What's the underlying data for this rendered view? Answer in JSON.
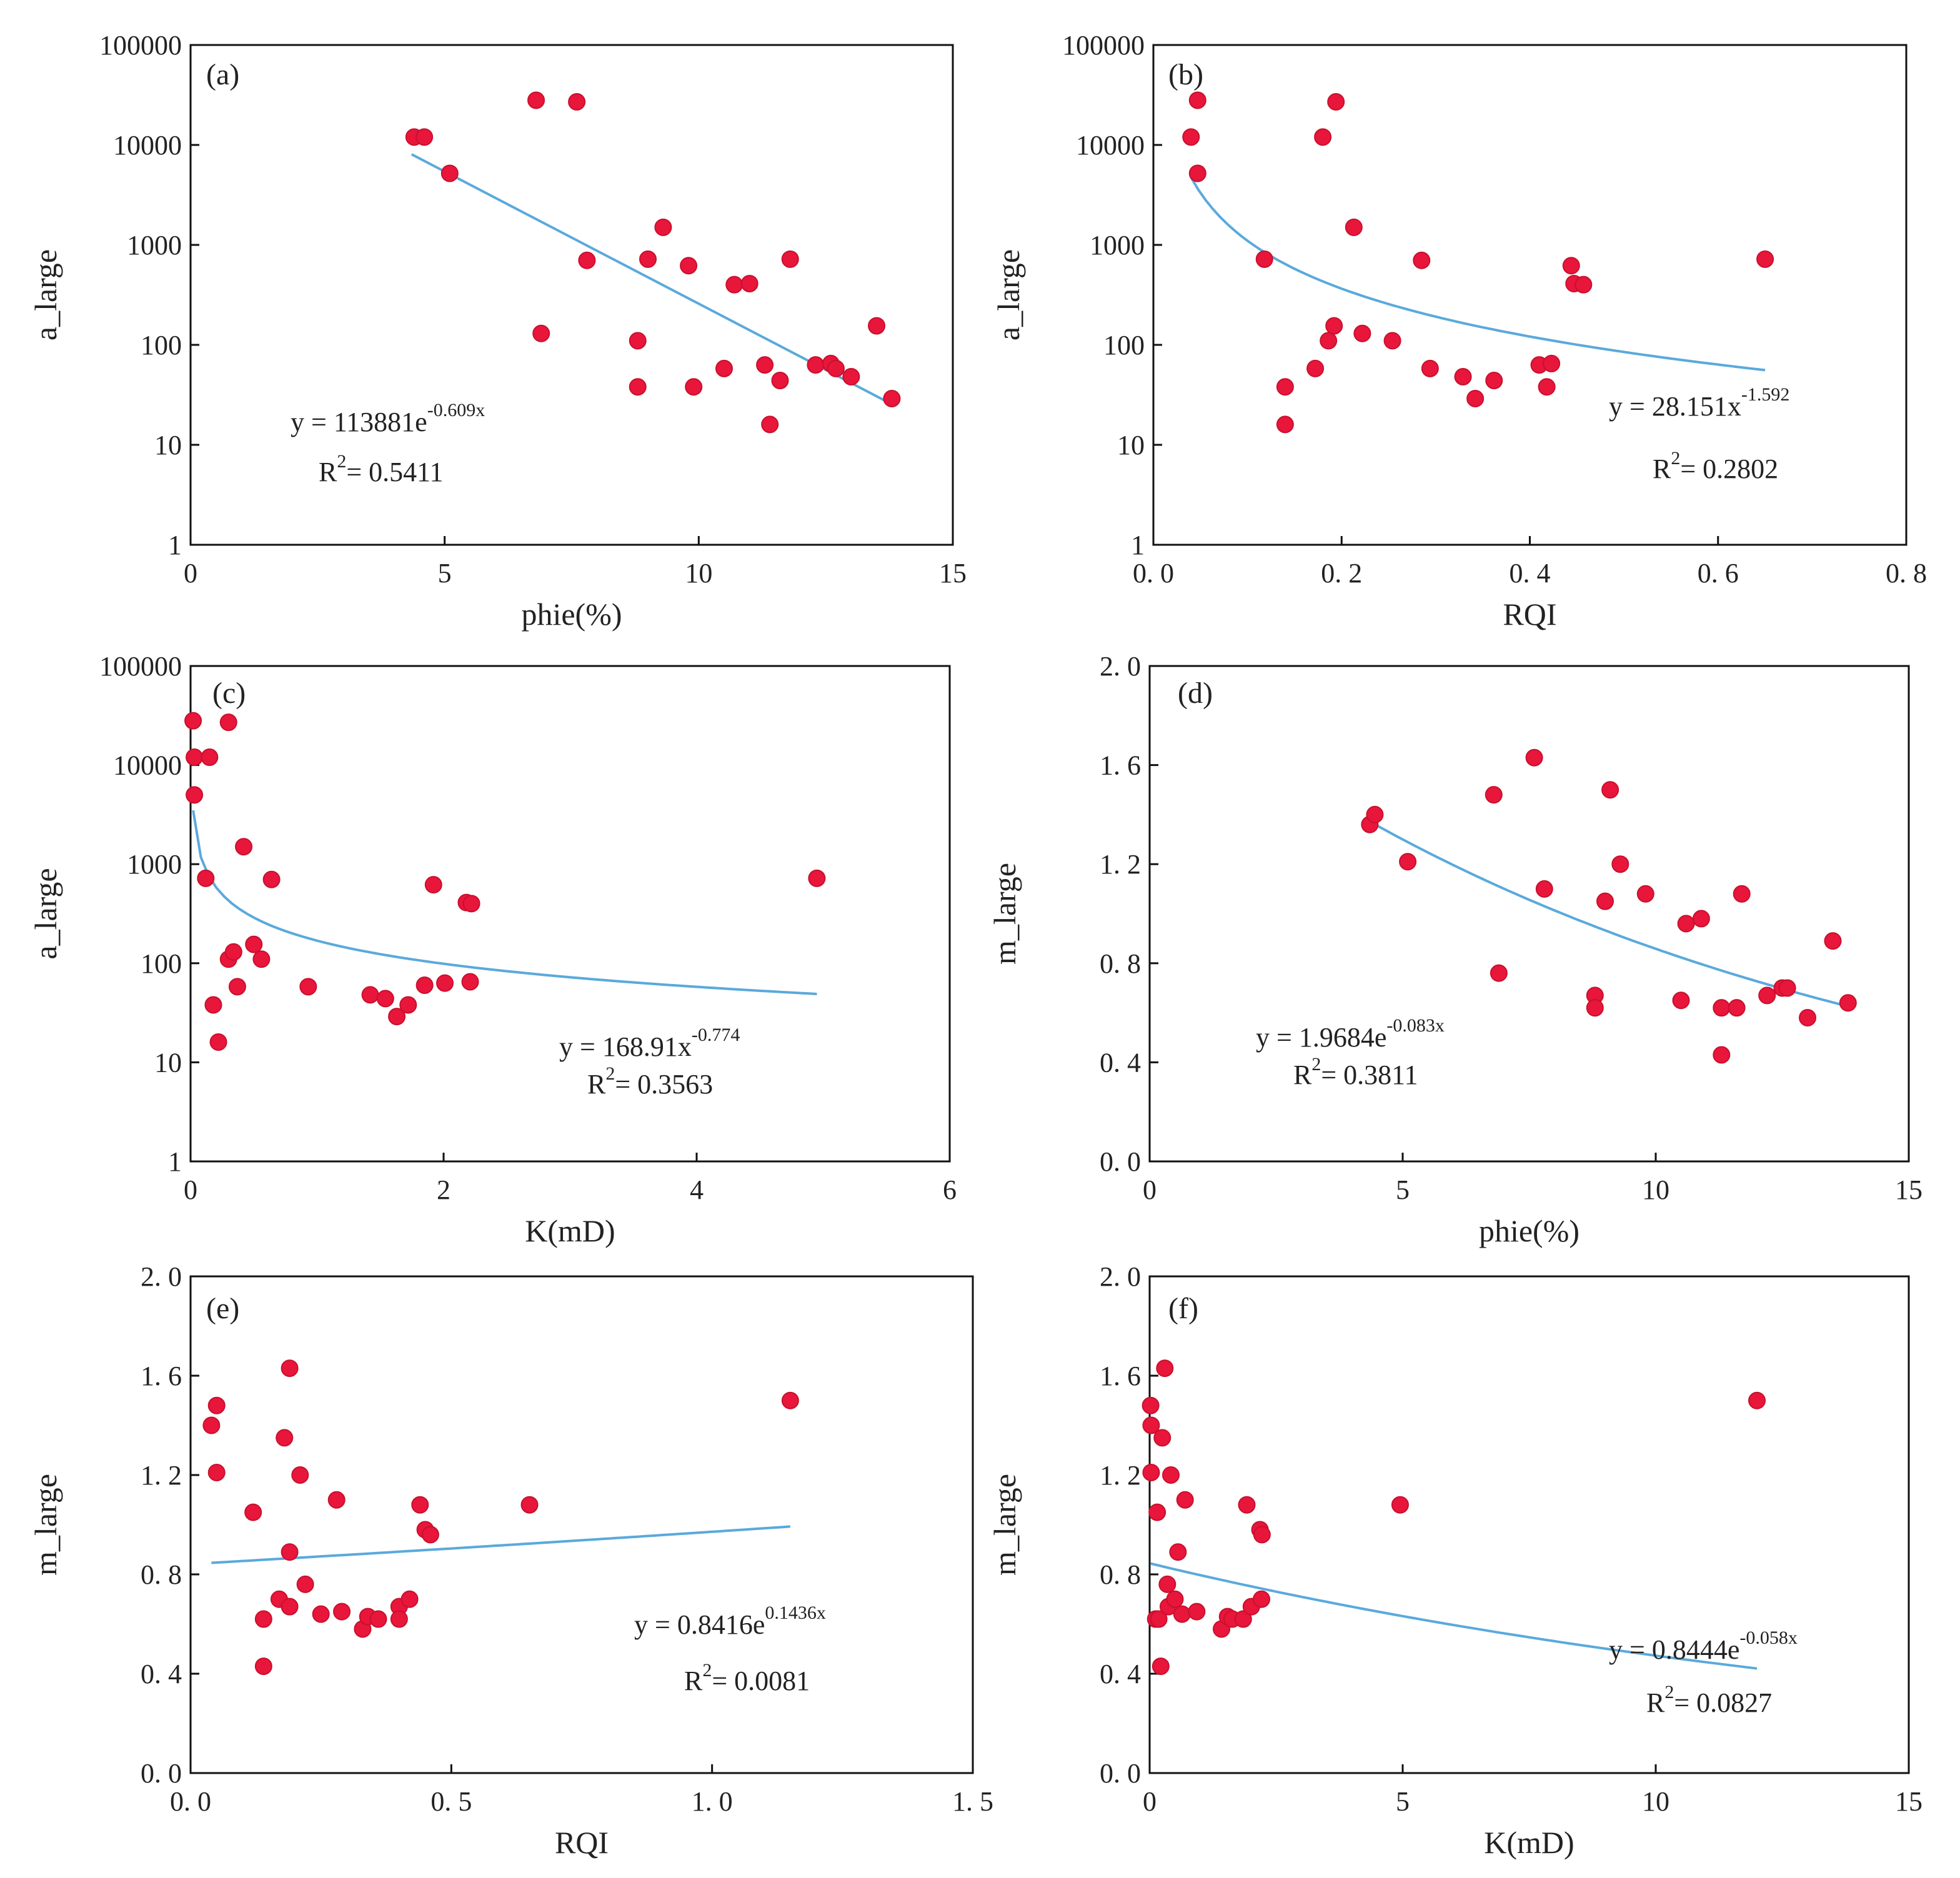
{
  "colors": {
    "marker": "#e8163a",
    "trend": "#5aa9dc",
    "axis": "#111111",
    "text": "#222222"
  },
  "chart_data": [
    {
      "type": "scatter",
      "panel": "(a)",
      "xlabel": "phie(%)",
      "ylabel": "a_large",
      "xscale": "linear",
      "yscale": "log",
      "xlim": [
        0,
        15
      ],
      "ylim": [
        1,
        100000
      ],
      "xticks": [
        "0",
        "5",
        "10",
        "15"
      ],
      "yticks": [
        "1",
        "10",
        "100",
        "1000",
        "10000",
        "100000"
      ],
      "points": [
        [
          4.4,
          12000
        ],
        [
          4.6,
          12000
        ],
        [
          5.1,
          5200
        ],
        [
          6.8,
          28000
        ],
        [
          6.9,
          130
        ],
        [
          7.6,
          27000
        ],
        [
          7.8,
          700
        ],
        [
          8.8,
          110
        ],
        [
          8.8,
          38
        ],
        [
          9.0,
          720
        ],
        [
          9.3,
          1500
        ],
        [
          9.8,
          620
        ],
        [
          9.9,
          38
        ],
        [
          10.5,
          58
        ],
        [
          10.7,
          400
        ],
        [
          11.0,
          410
        ],
        [
          11.3,
          63
        ],
        [
          11.4,
          16
        ],
        [
          11.6,
          44
        ],
        [
          11.8,
          720
        ],
        [
          12.3,
          63
        ],
        [
          12.6,
          65
        ],
        [
          12.7,
          58
        ],
        [
          13.0,
          48
        ],
        [
          13.5,
          155
        ],
        [
          13.8,
          29
        ]
      ],
      "trend": {
        "model": "exp",
        "a": 113881,
        "b": -0.609,
        "x_range": [
          4.35,
          13.8
        ]
      },
      "equation": {
        "prefix": "y = 113881e",
        "sup": "-0.609x"
      },
      "r2": {
        "prefix": "R",
        "sup": "2",
        "suffix": "= 0.5411"
      }
    },
    {
      "type": "scatter",
      "panel": "(b)",
      "xlabel": "RQI",
      "ylabel": "a_large",
      "xscale": "linear",
      "yscale": "log",
      "xlim": [
        0,
        0.8
      ],
      "ylim": [
        1,
        100000
      ],
      "xticks": [
        "0. 0",
        "0. 2",
        "0. 4",
        "0. 6",
        "0. 8"
      ],
      "yticks": [
        "1",
        "10",
        "100",
        "1000",
        "10000",
        "100000"
      ],
      "points": [
        [
          0.04,
          12000
        ],
        [
          0.047,
          28000
        ],
        [
          0.047,
          5200
        ],
        [
          0.118,
          720
        ],
        [
          0.14,
          38
        ],
        [
          0.14,
          16
        ],
        [
          0.172,
          58
        ],
        [
          0.18,
          12000
        ],
        [
          0.186,
          110
        ],
        [
          0.192,
          155
        ],
        [
          0.194,
          27000
        ],
        [
          0.213,
          1500
        ],
        [
          0.222,
          130
        ],
        [
          0.254,
          110
        ],
        [
          0.285,
          700
        ],
        [
          0.294,
          58
        ],
        [
          0.329,
          48
        ],
        [
          0.342,
          29
        ],
        [
          0.362,
          44
        ],
        [
          0.41,
          63
        ],
        [
          0.418,
          38
        ],
        [
          0.423,
          65
        ],
        [
          0.444,
          620
        ],
        [
          0.447,
          410
        ],
        [
          0.457,
          400
        ],
        [
          0.65,
          720
        ]
      ],
      "trend": {
        "model": "power",
        "a": 28.151,
        "b": -1.592,
        "x_range": [
          0.04,
          0.65
        ]
      },
      "equation": {
        "prefix": "y = 28.151x",
        "sup": "-1.592"
      },
      "r2": {
        "prefix": "R",
        "sup": "2",
        "suffix": "= 0.2802"
      }
    },
    {
      "type": "scatter",
      "panel": "(c)",
      "xlabel": "K(mD)",
      "ylabel": "a_large",
      "xscale": "linear",
      "yscale": "log",
      "xlim": [
        0,
        6
      ],
      "ylim": [
        1,
        100000
      ],
      "xticks": [
        "0",
        "2",
        "4",
        "6"
      ],
      "yticks": [
        "1",
        "10",
        "100",
        "1000",
        "10000",
        "100000"
      ],
      "points": [
        [
          0.02,
          28000
        ],
        [
          0.03,
          12000
        ],
        [
          0.03,
          5000
        ],
        [
          0.15,
          12000
        ],
        [
          0.12,
          720
        ],
        [
          0.18,
          38
        ],
        [
          0.22,
          16
        ],
        [
          0.3,
          27000
        ],
        [
          0.3,
          110
        ],
        [
          0.34,
          130
        ],
        [
          0.37,
          58
        ],
        [
          0.42,
          1500
        ],
        [
          0.5,
          155
        ],
        [
          0.56,
          110
        ],
        [
          0.64,
          700
        ],
        [
          0.93,
          58
        ],
        [
          1.42,
          48
        ],
        [
          1.54,
          44
        ],
        [
          1.63,
          29
        ],
        [
          1.72,
          38
        ],
        [
          1.85,
          60
        ],
        [
          1.92,
          620
        ],
        [
          2.01,
          63
        ],
        [
          2.18,
          410
        ],
        [
          2.22,
          400
        ],
        [
          2.21,
          65
        ],
        [
          4.95,
          720
        ]
      ],
      "trend": {
        "model": "power",
        "a": 168.91,
        "b": -0.774,
        "x_range": [
          0.02,
          4.95
        ]
      },
      "equation": {
        "prefix": "y = 168.91x",
        "sup": "-0.774"
      },
      "r2": {
        "prefix": "R",
        "sup": "2",
        "suffix": "= 0.3563"
      }
    },
    {
      "type": "scatter",
      "panel": "(d)",
      "xlabel": "phie(%)",
      "ylabel": "m_large",
      "xscale": "linear",
      "yscale": "linear",
      "xlim": [
        0,
        15
      ],
      "ylim": [
        0,
        2.0
      ],
      "xticks": [
        "0",
        "5",
        "10",
        "15"
      ],
      "yticks": [
        "0. 0",
        "0. 4",
        "0. 8",
        "1. 2",
        "1. 6",
        "2. 0"
      ],
      "points": [
        [
          4.35,
          1.36
        ],
        [
          4.45,
          1.4
        ],
        [
          5.1,
          1.21
        ],
        [
          6.8,
          1.48
        ],
        [
          6.9,
          0.76
        ],
        [
          7.6,
          1.63
        ],
        [
          7.8,
          1.1
        ],
        [
          8.8,
          0.67
        ],
        [
          8.8,
          0.62
        ],
        [
          9.0,
          1.05
        ],
        [
          9.1,
          1.5
        ],
        [
          9.3,
          1.2
        ],
        [
          9.8,
          1.08
        ],
        [
          10.5,
          0.65
        ],
        [
          10.6,
          0.96
        ],
        [
          10.9,
          0.98
        ],
        [
          11.3,
          0.62
        ],
        [
          11.3,
          0.43
        ],
        [
          11.6,
          0.62
        ],
        [
          11.7,
          1.08
        ],
        [
          12.2,
          0.67
        ],
        [
          12.5,
          0.7
        ],
        [
          12.6,
          0.7
        ],
        [
          13.0,
          0.58
        ],
        [
          13.5,
          0.89
        ],
        [
          13.8,
          0.64
        ]
      ],
      "trend": {
        "model": "exp",
        "a": 1.9684,
        "b": -0.083,
        "x_range": [
          4.35,
          13.8
        ]
      },
      "equation": {
        "prefix": "y = 1.9684e",
        "sup": "-0.083x"
      },
      "r2": {
        "prefix": "R",
        "sup": "2",
        "suffix": "= 0.3811"
      }
    },
    {
      "type": "scatter",
      "panel": "(e)",
      "xlabel": "RQI",
      "ylabel": "m_large",
      "xscale": "linear",
      "yscale": "linear",
      "xlim": [
        0,
        1.5
      ],
      "ylim": [
        0,
        2.0
      ],
      "xticks": [
        "0. 0",
        "0. 5",
        "1. 0",
        "1. 5"
      ],
      "yticks": [
        "0. 0",
        "0. 4",
        "0. 8",
        "1. 2",
        "1. 6",
        "2. 0"
      ],
      "points": [
        [
          0.04,
          1.4
        ],
        [
          0.05,
          1.48
        ],
        [
          0.05,
          1.21
        ],
        [
          0.12,
          1.05
        ],
        [
          0.14,
          0.62
        ],
        [
          0.14,
          0.43
        ],
        [
          0.17,
          0.7
        ],
        [
          0.18,
          1.35
        ],
        [
          0.19,
          0.67
        ],
        [
          0.19,
          0.89
        ],
        [
          0.19,
          1.63
        ],
        [
          0.21,
          1.2
        ],
        [
          0.22,
          0.76
        ],
        [
          0.25,
          0.64
        ],
        [
          0.28,
          1.1
        ],
        [
          0.29,
          0.65
        ],
        [
          0.33,
          0.58
        ],
        [
          0.34,
          0.63
        ],
        [
          0.36,
          0.62
        ],
        [
          0.4,
          0.67
        ],
        [
          0.4,
          0.62
        ],
        [
          0.42,
          0.7
        ],
        [
          0.44,
          1.08
        ],
        [
          0.45,
          0.98
        ],
        [
          0.46,
          0.96
        ],
        [
          0.65,
          1.08
        ],
        [
          1.15,
          1.5
        ]
      ],
      "trend": {
        "model": "exp",
        "a": 0.8416,
        "b": 0.1436,
        "x_range": [
          0.04,
          1.15
        ]
      },
      "equation": {
        "prefix": "y = 0.8416e",
        "sup": "0.1436x"
      },
      "r2": {
        "prefix": "R",
        "sup": "2",
        "suffix": "= 0.0081"
      }
    },
    {
      "type": "scatter",
      "panel": "(f)",
      "xlabel": "K(mD)",
      "ylabel": "m_large",
      "xscale": "linear",
      "yscale": "linear",
      "xlim": [
        0,
        15
      ],
      "ylim": [
        0,
        2.0
      ],
      "xticks": [
        "0",
        "5",
        "10",
        "15"
      ],
      "yticks": [
        "0. 0",
        "0. 4",
        "0. 8",
        "1. 2",
        "1. 6",
        "2. 0"
      ],
      "points": [
        [
          0.02,
          1.48
        ],
        [
          0.03,
          1.4
        ],
        [
          0.03,
          1.21
        ],
        [
          0.15,
          1.05
        ],
        [
          0.12,
          0.62
        ],
        [
          0.18,
          0.62
        ],
        [
          0.22,
          0.43
        ],
        [
          0.25,
          1.35
        ],
        [
          0.3,
          1.63
        ],
        [
          0.35,
          0.76
        ],
        [
          0.37,
          0.67
        ],
        [
          0.42,
          1.2
        ],
        [
          0.5,
          0.7
        ],
        [
          0.56,
          0.89
        ],
        [
          0.64,
          0.64
        ],
        [
          0.7,
          1.1
        ],
        [
          0.93,
          0.65
        ],
        [
          1.42,
          0.58
        ],
        [
          1.54,
          0.63
        ],
        [
          1.63,
          0.62
        ],
        [
          1.85,
          0.62
        ],
        [
          1.92,
          1.08
        ],
        [
          2.01,
          0.67
        ],
        [
          2.18,
          0.98
        ],
        [
          2.22,
          0.96
        ],
        [
          2.21,
          0.7
        ],
        [
          4.95,
          1.08
        ],
        [
          12.0,
          1.5
        ]
      ],
      "trend": {
        "model": "exp",
        "a": 0.8444,
        "b": -0.058,
        "x_range": [
          0.02,
          12.0
        ]
      },
      "equation": {
        "prefix": "y = 0.8444e",
        "sup": "-0.058x"
      },
      "r2": {
        "prefix": "R",
        "sup": "2",
        "suffix": "= 0.0827"
      }
    }
  ]
}
